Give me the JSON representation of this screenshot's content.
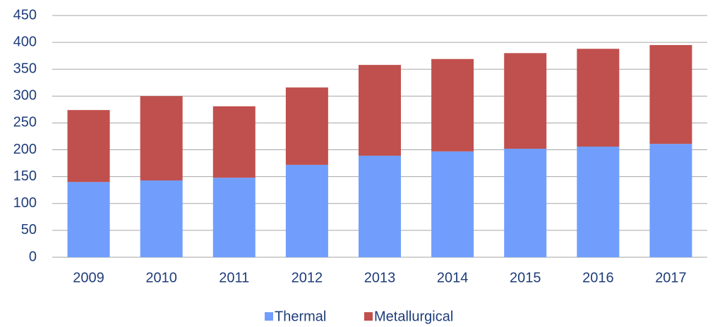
{
  "chart_data": {
    "type": "stacked-bar",
    "categories": [
      "2009",
      "2010",
      "2011",
      "2012",
      "2013",
      "2014",
      "2015",
      "2016",
      "2017"
    ],
    "series": [
      {
        "name": "Thermal",
        "color": "#719efc",
        "values": [
          140,
          143,
          148,
          172,
          189,
          197,
          202,
          206,
          211
        ]
      },
      {
        "name": "Metallurgical",
        "color": "#c0504d",
        "values": [
          134,
          157,
          133,
          144,
          169,
          172,
          178,
          182,
          184
        ]
      }
    ],
    "ylim": [
      0,
      450
    ],
    "yticks": [
      0,
      50,
      100,
      150,
      200,
      250,
      300,
      350,
      400,
      450
    ],
    "grid": true,
    "legend": "bottom"
  }
}
